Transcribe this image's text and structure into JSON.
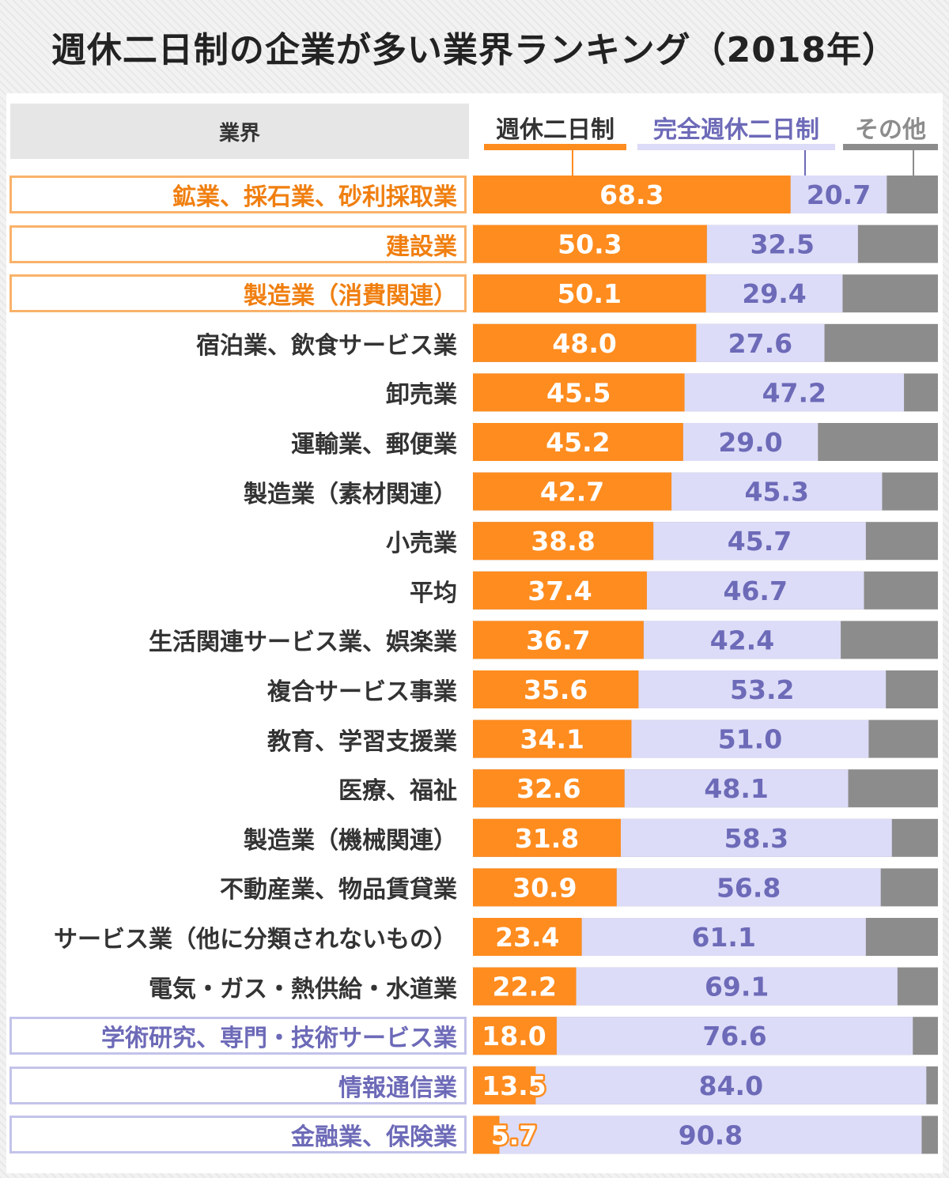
{
  "title": "週休二日制の企業が多い業界ランキング（2018年）",
  "colors": {
    "weekly2": "#ff8c1f",
    "full2": "#dcdcf8",
    "other": "#8c8c8c",
    "label_orange": "#f07f10",
    "label_blue": "#6d6ab8",
    "label_default": "#333333"
  },
  "chart_data": {
    "type": "bar",
    "stacked": true,
    "orientation": "horizontal",
    "title": "週休二日制の企業が多い業界ランキング（2018年）",
    "category_header": "業界",
    "categories": [
      "鉱業、採石業、砂利採取業",
      "建設業",
      "製造業（消費関連）",
      "宿泊業、飲食サービス業",
      "卸売業",
      "運輸業、郵便業",
      "製造業（素材関連）",
      "小売業",
      "平均",
      "生活関連サービス業、娯楽業",
      "複合サービス事業",
      "教育、学習支援業",
      "医療、福祉",
      "製造業（機械関連）",
      "不動産業、物品賃貸業",
      "サービス業（他に分類されないもの）",
      "電気・ガス・熱供給・水道業",
      "学術研究、専門・技術サービス業",
      "情報通信業",
      "金融業、保険業"
    ],
    "highlight": [
      "orange",
      "orange",
      "orange",
      "none",
      "none",
      "none",
      "none",
      "none",
      "none",
      "none",
      "none",
      "none",
      "none",
      "none",
      "none",
      "none",
      "none",
      "blue",
      "blue",
      "blue"
    ],
    "series": [
      {
        "name": "週休二日制",
        "values": [
          68.3,
          50.3,
          50.1,
          48.0,
          45.5,
          45.2,
          42.7,
          38.8,
          37.4,
          36.7,
          35.6,
          34.1,
          32.6,
          31.8,
          30.9,
          23.4,
          22.2,
          18.0,
          13.5,
          5.7
        ]
      },
      {
        "name": "完全週休二日制",
        "values": [
          20.7,
          32.5,
          29.4,
          27.6,
          47.2,
          29.0,
          45.3,
          45.7,
          46.7,
          42.4,
          53.2,
          51.0,
          48.1,
          58.3,
          56.8,
          61.1,
          69.1,
          76.6,
          84.0,
          90.8
        ]
      },
      {
        "name": "その他"
      }
    ],
    "xlim": [
      0,
      100
    ],
    "grid": false,
    "legend": "top"
  }
}
